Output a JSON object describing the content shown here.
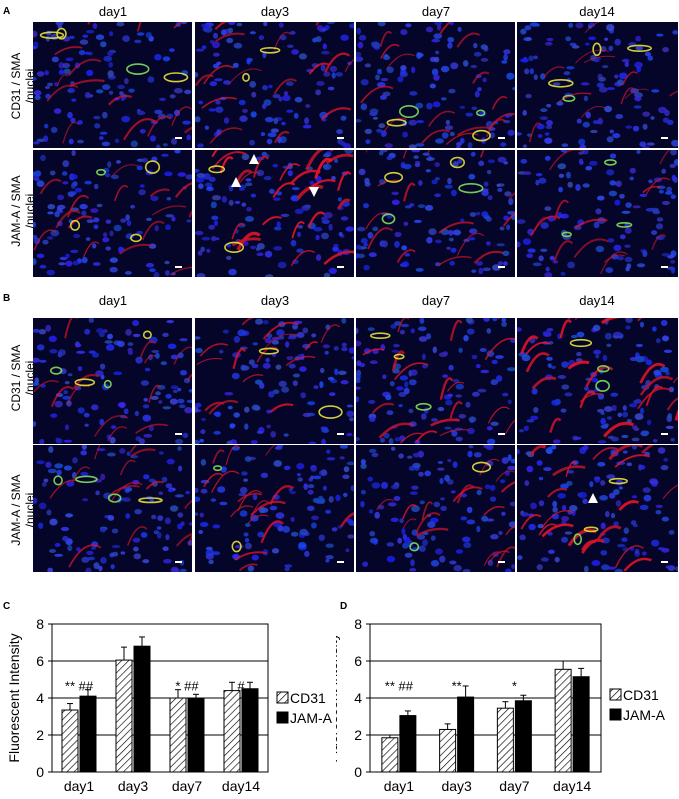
{
  "panels": {
    "A": {
      "letter": "A",
      "columns": [
        "day1",
        "day3",
        "day7",
        "day14"
      ],
      "rows": [
        {
          "label_line1": "CD31 / SMA",
          "label_line2": "/nuclei"
        },
        {
          "label_line1": "JAM-A / SMA",
          "label_line2": "/nuclei"
        }
      ]
    },
    "B": {
      "letter": "B",
      "columns": [
        "day1",
        "day3",
        "day7",
        "day14"
      ],
      "rows": [
        {
          "label_line1": "CD31 / SMA",
          "label_line2": "/nuclei"
        },
        {
          "label_line1": "JAM-A / SMA",
          "label_line2": "/nuclei"
        }
      ]
    },
    "C": {
      "letter": "C"
    },
    "D": {
      "letter": "D"
    }
  },
  "chart_data": [
    {
      "panel": "C",
      "type": "bar",
      "ylabel": "Fluorescent Intensity",
      "ylim": [
        0,
        8
      ],
      "yticks": [
        0,
        2,
        4,
        6,
        8
      ],
      "grid": true,
      "legend_position": "right",
      "categories": [
        "day1",
        "day3",
        "day7",
        "day14"
      ],
      "series": [
        {
          "name": "CD31",
          "pattern": "hatched",
          "values": [
            3.35,
            6.05,
            4.0,
            4.4
          ],
          "errors": [
            0.35,
            0.7,
            0.45,
            0.45
          ]
        },
        {
          "name": "JAM-A",
          "pattern": "solid",
          "color": "#000000",
          "values": [
            4.1,
            6.8,
            3.95,
            4.5
          ],
          "errors": [
            0.35,
            0.5,
            0.25,
            0.35
          ]
        }
      ],
      "annotations": [
        "** ##",
        "",
        "* ##",
        "#"
      ]
    },
    {
      "panel": "D",
      "type": "bar",
      "ylabel": "Fluorescent Intensity",
      "ylim": [
        0,
        8
      ],
      "yticks": [
        0,
        2,
        4,
        6,
        8
      ],
      "grid": true,
      "legend_position": "right",
      "categories": [
        "day1",
        "day3",
        "day7",
        "day14"
      ],
      "series": [
        {
          "name": "CD31",
          "pattern": "hatched",
          "values": [
            1.85,
            2.3,
            3.45,
            5.55
          ],
          "errors": [
            0.15,
            0.3,
            0.35,
            0.45
          ]
        },
        {
          "name": "JAM-A",
          "pattern": "solid",
          "color": "#000000",
          "values": [
            3.05,
            4.05,
            3.85,
            5.15
          ],
          "errors": [
            0.25,
            0.6,
            0.3,
            0.45
          ]
        }
      ],
      "annotations": [
        "** ##",
        "**",
        "*",
        ""
      ]
    }
  ]
}
